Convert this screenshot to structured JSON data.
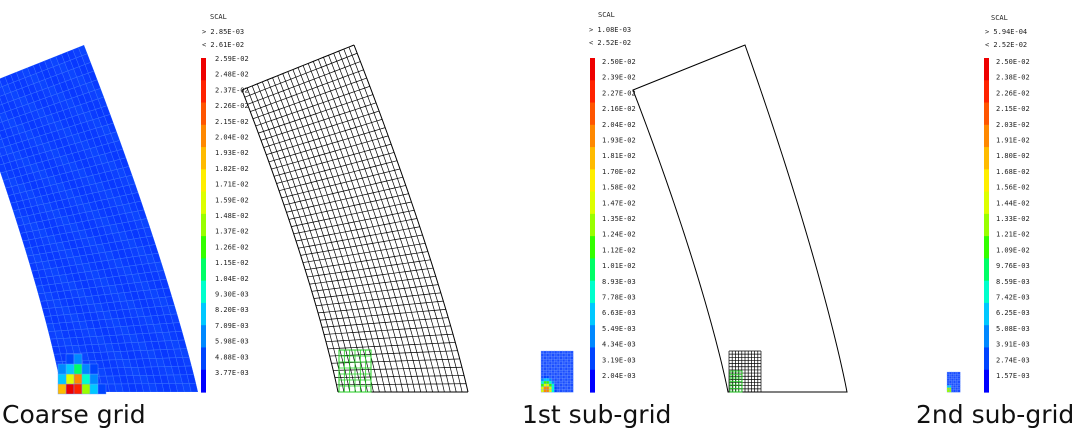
{
  "colormap": [
    "#0000ff",
    "#0044ff",
    "#0088ff",
    "#00c8ff",
    "#00ffcc",
    "#00ff66",
    "#33ff00",
    "#99ff00",
    "#ddff00",
    "#ffee00",
    "#ffbb00",
    "#ff8800",
    "#ff5500",
    "#ff2200",
    "#ee0000"
  ],
  "colors": {
    "mesh_line": "#000000",
    "subgrid_box": "#22cc22",
    "field_base": "#0a3cff"
  },
  "panels": [
    {
      "id": "coarse",
      "caption": "Coarse grid",
      "legend": {
        "title": "SCAL",
        "min_label": "> 2.85E-03",
        "max_label": "< 2.61E-02",
        "ticks": [
          "2.59E-02",
          "2.48E-02",
          "2.37E-02",
          "2.26E-02",
          "2.15E-02",
          "2.04E-02",
          "1.93E-02",
          "1.82E-02",
          "1.71E-02",
          "1.59E-02",
          "1.48E-02",
          "1.37E-02",
          "1.26E-02",
          "1.15E-02",
          "1.04E-02",
          "9.30E-03",
          "8.20E-03",
          "7.09E-03",
          "5.98E-03",
          "4.88E-03",
          "3.77E-03"
        ]
      }
    },
    {
      "id": "sub1",
      "caption": "1st sub-grid",
      "legend": {
        "title": "SCAL",
        "min_label": "> 1.08E-03",
        "max_label": "< 2.52E-02",
        "ticks": [
          "2.50E-02",
          "2.39E-02",
          "2.27E-02",
          "2.16E-02",
          "2.04E-02",
          "1.93E-02",
          "1.81E-02",
          "1.70E-02",
          "1.58E-02",
          "1.47E-02",
          "1.35E-02",
          "1.24E-02",
          "1.12E-02",
          "1.01E-02",
          "8.93E-03",
          "7.78E-03",
          "6.63E-03",
          "5.49E-03",
          "4.34E-03",
          "3.19E-03",
          "2.04E-03"
        ]
      }
    },
    {
      "id": "sub2",
      "caption": "2nd sub-grid",
      "legend": {
        "title": "SCAL",
        "min_label": "> 5.94E-04",
        "max_label": "< 2.52E-02",
        "ticks": [
          "2.50E-02",
          "2.38E-02",
          "2.26E-02",
          "2.15E-02",
          "2.03E-02",
          "1.91E-02",
          "1.80E-02",
          "1.68E-02",
          "1.56E-02",
          "1.44E-02",
          "1.33E-02",
          "1.21E-02",
          "1.09E-02",
          "9.76E-03",
          "8.59E-03",
          "7.42E-03",
          "6.25E-03",
          "5.08E-03",
          "3.91E-03",
          "2.74E-03",
          "1.57E-03"
        ]
      }
    }
  ]
}
